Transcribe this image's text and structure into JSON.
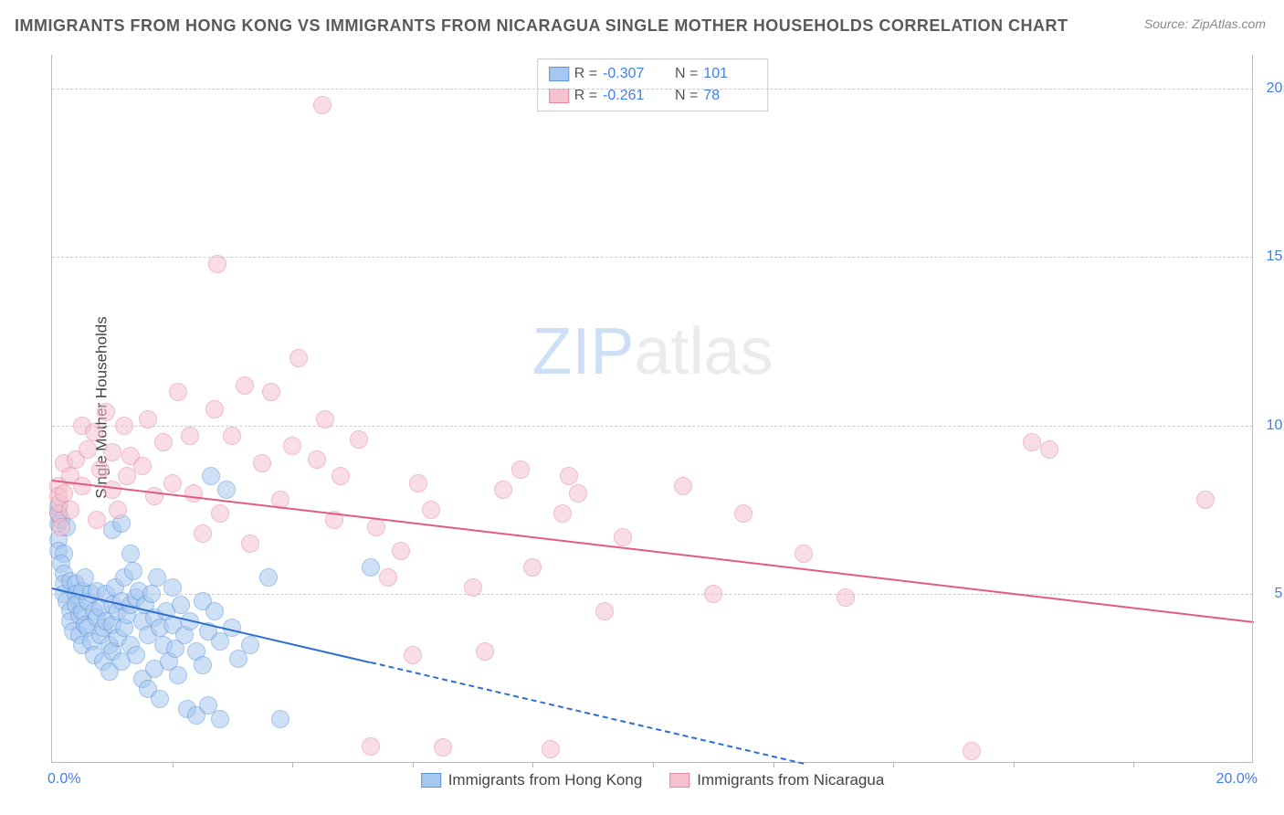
{
  "title": "IMMIGRANTS FROM HONG KONG VS IMMIGRANTS FROM NICARAGUA SINGLE MOTHER HOUSEHOLDS CORRELATION CHART",
  "source": "Source: ZipAtlas.com",
  "ylabel": "Single Mother Households",
  "watermark_a": "ZIP",
  "watermark_b": "atlas",
  "chart": {
    "type": "scatter",
    "background_color": "#ffffff",
    "grid_color": "#cccccc",
    "axis_color": "#bbbbbb",
    "tick_label_color": "#3f7ee8",
    "xlim": [
      0,
      20
    ],
    "ylim": [
      0,
      21
    ],
    "ytick_positions": [
      5,
      10,
      15,
      20
    ],
    "ytick_labels": [
      "5.0%",
      "10.0%",
      "15.0%",
      "20.0%"
    ],
    "xtick_marks": [
      2,
      4,
      6,
      8,
      10,
      12,
      14,
      16,
      18
    ],
    "x_first_label": "0.0%",
    "x_last_label": "20.0%",
    "marker_radius": 10,
    "marker_opacity": 0.55,
    "series": [
      {
        "name": "Immigrants from Hong Kong",
        "color_fill": "#a6c7ef",
        "color_border": "#5c96da",
        "trend_color": "#2d6fcf",
        "R": "-0.307",
        "N": "101",
        "trend": {
          "x1": 0,
          "y1": 5.2,
          "x2": 5.3,
          "y2": 3.0
        },
        "trend_dash": {
          "x1": 5.3,
          "y1": 3.0,
          "x2": 12.5,
          "y2": 0.0
        },
        "points": [
          [
            0.1,
            7.4
          ],
          [
            0.1,
            7.1
          ],
          [
            0.1,
            6.6
          ],
          [
            0.1,
            6.3
          ],
          [
            0.1,
            7.6
          ],
          [
            0.2,
            6.2
          ],
          [
            0.15,
            5.9
          ],
          [
            0.2,
            5.6
          ],
          [
            0.2,
            5.3
          ],
          [
            0.2,
            5.0
          ],
          [
            0.15,
            7.2
          ],
          [
            0.25,
            7.0
          ],
          [
            0.25,
            4.8
          ],
          [
            0.3,
            5.4
          ],
          [
            0.3,
            4.5
          ],
          [
            0.3,
            4.2
          ],
          [
            0.35,
            3.9
          ],
          [
            0.4,
            5.3
          ],
          [
            0.4,
            5.0
          ],
          [
            0.4,
            4.7
          ],
          [
            0.45,
            4.4
          ],
          [
            0.45,
            3.8
          ],
          [
            0.5,
            5.1
          ],
          [
            0.5,
            4.5
          ],
          [
            0.5,
            3.5
          ],
          [
            0.55,
            5.5
          ],
          [
            0.55,
            4.1
          ],
          [
            0.6,
            4.8
          ],
          [
            0.6,
            4.0
          ],
          [
            0.65,
            5.0
          ],
          [
            0.65,
            3.6
          ],
          [
            0.7,
            4.5
          ],
          [
            0.7,
            3.2
          ],
          [
            0.75,
            5.1
          ],
          [
            0.75,
            4.3
          ],
          [
            0.8,
            4.6
          ],
          [
            0.8,
            3.8
          ],
          [
            0.85,
            4.0
          ],
          [
            0.85,
            3.0
          ],
          [
            0.9,
            5.0
          ],
          [
            0.9,
            4.2
          ],
          [
            0.95,
            3.5
          ],
          [
            0.95,
            2.7
          ],
          [
            1.0,
            6.9
          ],
          [
            1.0,
            4.7
          ],
          [
            1.0,
            4.1
          ],
          [
            1.0,
            3.3
          ],
          [
            1.05,
            5.2
          ],
          [
            1.1,
            4.5
          ],
          [
            1.1,
            3.7
          ],
          [
            1.15,
            7.1
          ],
          [
            1.15,
            4.8
          ],
          [
            1.15,
            3.0
          ],
          [
            1.2,
            5.5
          ],
          [
            1.2,
            4.0
          ],
          [
            1.25,
            4.4
          ],
          [
            1.3,
            6.2
          ],
          [
            1.3,
            4.7
          ],
          [
            1.3,
            3.5
          ],
          [
            1.35,
            5.7
          ],
          [
            1.4,
            4.9
          ],
          [
            1.4,
            3.2
          ],
          [
            1.45,
            5.1
          ],
          [
            1.5,
            4.2
          ],
          [
            1.5,
            2.5
          ],
          [
            1.55,
            4.7
          ],
          [
            1.6,
            3.8
          ],
          [
            1.6,
            2.2
          ],
          [
            1.65,
            5.0
          ],
          [
            1.7,
            4.3
          ],
          [
            1.7,
            2.8
          ],
          [
            1.75,
            5.5
          ],
          [
            1.8,
            4.0
          ],
          [
            1.8,
            1.9
          ],
          [
            1.85,
            3.5
          ],
          [
            1.9,
            4.5
          ],
          [
            1.95,
            3.0
          ],
          [
            2.0,
            5.2
          ],
          [
            2.0,
            4.1
          ],
          [
            2.05,
            3.4
          ],
          [
            2.1,
            2.6
          ],
          [
            2.15,
            4.7
          ],
          [
            2.2,
            3.8
          ],
          [
            2.25,
            1.6
          ],
          [
            2.3,
            4.2
          ],
          [
            2.4,
            3.3
          ],
          [
            2.4,
            1.4
          ],
          [
            2.5,
            4.8
          ],
          [
            2.5,
            2.9
          ],
          [
            2.6,
            3.9
          ],
          [
            2.6,
            1.7
          ],
          [
            2.65,
            8.5
          ],
          [
            2.7,
            4.5
          ],
          [
            2.8,
            3.6
          ],
          [
            2.8,
            1.3
          ],
          [
            2.9,
            8.1
          ],
          [
            3.0,
            4.0
          ],
          [
            3.1,
            3.1
          ],
          [
            3.3,
            3.5
          ],
          [
            3.6,
            5.5
          ],
          [
            3.8,
            1.3
          ],
          [
            5.3,
            5.8
          ]
        ]
      },
      {
        "name": "Immigrants from Nicaragua",
        "color_fill": "#f4c3cf",
        "color_border": "#e885a0",
        "trend_color": "#e25b83",
        "R": "-0.261",
        "N": "78",
        "trend": {
          "x1": 0,
          "y1": 8.4,
          "x2": 20,
          "y2": 4.2
        },
        "points": [
          [
            0.1,
            8.2
          ],
          [
            0.1,
            7.9
          ],
          [
            0.1,
            7.4
          ],
          [
            0.12,
            7.7
          ],
          [
            0.15,
            7.0
          ],
          [
            0.2,
            8.9
          ],
          [
            0.2,
            8.0
          ],
          [
            0.3,
            8.5
          ],
          [
            0.3,
            7.5
          ],
          [
            0.4,
            9.0
          ],
          [
            0.5,
            10.0
          ],
          [
            0.5,
            8.2
          ],
          [
            0.6,
            9.3
          ],
          [
            0.7,
            9.8
          ],
          [
            0.75,
            7.2
          ],
          [
            0.8,
            8.7
          ],
          [
            0.9,
            10.4
          ],
          [
            1.0,
            8.1
          ],
          [
            1.0,
            9.2
          ],
          [
            1.1,
            7.5
          ],
          [
            1.2,
            10.0
          ],
          [
            1.25,
            8.5
          ],
          [
            1.3,
            9.1
          ],
          [
            1.5,
            8.8
          ],
          [
            1.6,
            10.2
          ],
          [
            1.7,
            7.9
          ],
          [
            1.85,
            9.5
          ],
          [
            2.0,
            8.3
          ],
          [
            2.1,
            11.0
          ],
          [
            2.3,
            9.7
          ],
          [
            2.35,
            8.0
          ],
          [
            2.5,
            6.8
          ],
          [
            2.7,
            10.5
          ],
          [
            2.75,
            14.8
          ],
          [
            2.8,
            7.4
          ],
          [
            3.0,
            9.7
          ],
          [
            3.2,
            11.2
          ],
          [
            3.3,
            6.5
          ],
          [
            3.5,
            8.9
          ],
          [
            3.65,
            11.0
          ],
          [
            3.8,
            7.8
          ],
          [
            4.0,
            9.4
          ],
          [
            4.1,
            12.0
          ],
          [
            4.4,
            9.0
          ],
          [
            4.5,
            19.5
          ],
          [
            4.55,
            10.2
          ],
          [
            4.7,
            7.2
          ],
          [
            4.8,
            8.5
          ],
          [
            5.1,
            9.6
          ],
          [
            5.3,
            0.5
          ],
          [
            5.4,
            7.0
          ],
          [
            5.6,
            5.5
          ],
          [
            5.8,
            6.3
          ],
          [
            6.0,
            3.2
          ],
          [
            6.1,
            8.3
          ],
          [
            6.3,
            7.5
          ],
          [
            6.5,
            0.45
          ],
          [
            7.0,
            5.2
          ],
          [
            7.2,
            3.3
          ],
          [
            7.5,
            8.1
          ],
          [
            7.8,
            8.7
          ],
          [
            8.0,
            5.8
          ],
          [
            8.3,
            0.4
          ],
          [
            8.5,
            7.4
          ],
          [
            8.6,
            8.5
          ],
          [
            8.75,
            8.0
          ],
          [
            9.2,
            4.5
          ],
          [
            9.5,
            6.7
          ],
          [
            10.5,
            8.2
          ],
          [
            11.0,
            5.0
          ],
          [
            11.5,
            7.4
          ],
          [
            12.5,
            6.2
          ],
          [
            13.2,
            4.9
          ],
          [
            15.3,
            0.35
          ],
          [
            16.3,
            9.5
          ],
          [
            16.6,
            9.3
          ],
          [
            19.2,
            7.8
          ]
        ]
      }
    ]
  }
}
